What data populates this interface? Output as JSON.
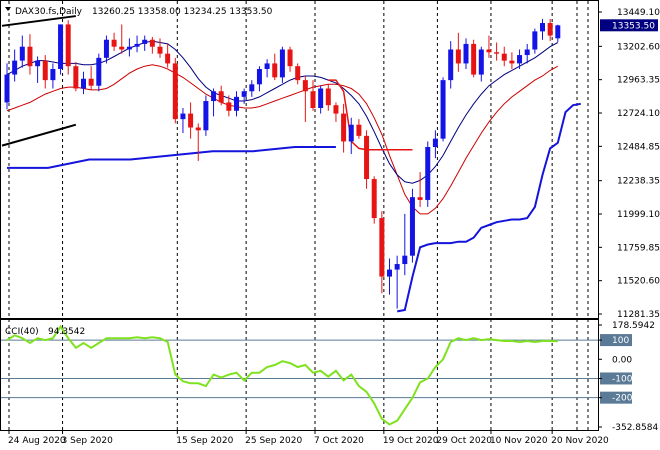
{
  "header": {
    "symbol_text": "DAX30.fs,Daily",
    "ohlc_text": "13260.25 13358.00 13234.25 13353.50",
    "collapse_icon": "triangle-down-icon"
  },
  "price_axis_ticks": [
    "13449.10",
    "13202.60",
    "12963.35",
    "12724.10",
    "12484.85",
    "12238.35",
    "11999.10",
    "11759.85",
    "11520.60",
    "11281.35"
  ],
  "price_tag": "13353.50",
  "cci_header": {
    "name_text": "CCI(40)",
    "value_text": "94.3542"
  },
  "cci_axis_ticks": [
    "178.5942",
    "100",
    "0.00",
    "-100",
    "-200",
    "-352.8584"
  ],
  "date_labels": [
    "24 Aug 2020",
    "3 Sep 2020",
    "15 Sep 2020",
    "25 Sep 2020",
    "7 Oct 2020",
    "19 Oct 2020",
    "29 Oct 2020",
    "10 Nov 2020",
    "20 Nov 2020"
  ],
  "colors": {
    "bull": "#1414e6",
    "bear": "#e61414",
    "ma_fast": "#000080",
    "ma_slow": "#cc0000",
    "support": "#1414dc",
    "cci_line": "#7fe21f",
    "cci_levels": "#5a7a96",
    "tag_bg": "#000080"
  },
  "chart_data": [
    {
      "type": "candlestick",
      "title": "DAX30.fs,Daily",
      "ylim": [
        11281.35,
        13449.1
      ],
      "last_price": 13353.5,
      "candles": [
        {
          "o": 12800,
          "h": 13080,
          "l": 12750,
          "c": 13000
        },
        {
          "o": 13000,
          "h": 13180,
          "l": 12950,
          "c": 13100
        },
        {
          "o": 13100,
          "h": 13280,
          "l": 13050,
          "c": 13200
        },
        {
          "o": 13200,
          "h": 13290,
          "l": 13000,
          "c": 13060
        },
        {
          "o": 13060,
          "h": 13130,
          "l": 12940,
          "c": 13100
        },
        {
          "o": 13100,
          "h": 13140,
          "l": 12900,
          "c": 12960
        },
        {
          "o": 12960,
          "h": 13080,
          "l": 12900,
          "c": 13040
        },
        {
          "o": 13040,
          "h": 13360,
          "l": 13000,
          "c": 13360
        },
        {
          "o": 13360,
          "h": 13390,
          "l": 13000,
          "c": 13060
        },
        {
          "o": 13060,
          "h": 13090,
          "l": 12880,
          "c": 12900
        },
        {
          "o": 12900,
          "h": 13020,
          "l": 12860,
          "c": 12970
        },
        {
          "o": 12970,
          "h": 13060,
          "l": 12890,
          "c": 12920
        },
        {
          "o": 12920,
          "h": 13150,
          "l": 12880,
          "c": 13120
        },
        {
          "o": 13120,
          "h": 13280,
          "l": 13080,
          "c": 13250
        },
        {
          "o": 13250,
          "h": 13300,
          "l": 13170,
          "c": 13200
        },
        {
          "o": 13200,
          "h": 13360,
          "l": 13150,
          "c": 13180
        },
        {
          "o": 13180,
          "h": 13260,
          "l": 13130,
          "c": 13200
        },
        {
          "o": 13200,
          "h": 13280,
          "l": 13160,
          "c": 13220
        },
        {
          "o": 13220,
          "h": 13280,
          "l": 13170,
          "c": 13250
        },
        {
          "o": 13250,
          "h": 13270,
          "l": 13150,
          "c": 13200
        },
        {
          "o": 13200,
          "h": 13260,
          "l": 13120,
          "c": 13150
        },
        {
          "o": 13150,
          "h": 13220,
          "l": 13050,
          "c": 13080
        },
        {
          "o": 13080,
          "h": 13120,
          "l": 12650,
          "c": 12680
        },
        {
          "o": 12680,
          "h": 12760,
          "l": 12580,
          "c": 12720
        },
        {
          "o": 12720,
          "h": 12800,
          "l": 12540,
          "c": 12620
        },
        {
          "o": 12620,
          "h": 12650,
          "l": 12380,
          "c": 12600
        },
        {
          "o": 12600,
          "h": 12850,
          "l": 12560,
          "c": 12810
        },
        {
          "o": 12810,
          "h": 12900,
          "l": 12700,
          "c": 12880
        },
        {
          "o": 12880,
          "h": 12920,
          "l": 12780,
          "c": 12800
        },
        {
          "o": 12800,
          "h": 12850,
          "l": 12700,
          "c": 12740
        },
        {
          "o": 12740,
          "h": 12880,
          "l": 12700,
          "c": 12840
        },
        {
          "o": 12840,
          "h": 12900,
          "l": 12790,
          "c": 12880
        },
        {
          "o": 12880,
          "h": 12960,
          "l": 12840,
          "c": 12930
        },
        {
          "o": 12930,
          "h": 13060,
          "l": 12880,
          "c": 13040
        },
        {
          "o": 13040,
          "h": 13110,
          "l": 12980,
          "c": 13080
        },
        {
          "o": 13080,
          "h": 13150,
          "l": 12960,
          "c": 12980
        },
        {
          "o": 12980,
          "h": 13200,
          "l": 12940,
          "c": 13180
        },
        {
          "o": 13180,
          "h": 13200,
          "l": 13020,
          "c": 13060
        },
        {
          "o": 13060,
          "h": 13080,
          "l": 12930,
          "c": 12960
        },
        {
          "o": 12960,
          "h": 12990,
          "l": 12660,
          "c": 12880
        },
        {
          "o": 12880,
          "h": 12960,
          "l": 12740,
          "c": 12760
        },
        {
          "o": 12760,
          "h": 12920,
          "l": 12720,
          "c": 12900
        },
        {
          "o": 12900,
          "h": 12930,
          "l": 12740,
          "c": 12780
        },
        {
          "o": 12780,
          "h": 12800,
          "l": 12660,
          "c": 12720
        },
        {
          "o": 12720,
          "h": 12790,
          "l": 12440,
          "c": 12520
        },
        {
          "o": 12520,
          "h": 12690,
          "l": 12430,
          "c": 12640
        },
        {
          "o": 12640,
          "h": 12680,
          "l": 12540,
          "c": 12560
        },
        {
          "o": 12560,
          "h": 12600,
          "l": 12180,
          "c": 12250
        },
        {
          "o": 12250,
          "h": 12270,
          "l": 11930,
          "c": 11970
        },
        {
          "o": 11970,
          "h": 12020,
          "l": 11430,
          "c": 11550
        },
        {
          "o": 11550,
          "h": 11680,
          "l": 11420,
          "c": 11600
        },
        {
          "o": 11600,
          "h": 11700,
          "l": 11320,
          "c": 11640
        },
        {
          "o": 11640,
          "h": 12000,
          "l": 11560,
          "c": 11700
        },
        {
          "o": 11700,
          "h": 12180,
          "l": 11650,
          "c": 12120
        },
        {
          "o": 12120,
          "h": 12300,
          "l": 12050,
          "c": 12100
        },
        {
          "o": 12100,
          "h": 12520,
          "l": 12050,
          "c": 12480
        },
        {
          "o": 12480,
          "h": 12600,
          "l": 12400,
          "c": 12540
        },
        {
          "o": 12540,
          "h": 12980,
          "l": 12520,
          "c": 12960
        },
        {
          "o": 12960,
          "h": 13240,
          "l": 12900,
          "c": 13180
        },
        {
          "o": 13180,
          "h": 13300,
          "l": 13020,
          "c": 13080
        },
        {
          "o": 13080,
          "h": 13260,
          "l": 13040,
          "c": 13220
        },
        {
          "o": 13220,
          "h": 13250,
          "l": 12980,
          "c": 13000
        },
        {
          "o": 13000,
          "h": 13200,
          "l": 12950,
          "c": 13180
        },
        {
          "o": 13180,
          "h": 13280,
          "l": 13120,
          "c": 13160
        },
        {
          "o": 13160,
          "h": 13230,
          "l": 13100,
          "c": 13150
        },
        {
          "o": 13150,
          "h": 13200,
          "l": 13060,
          "c": 13100
        },
        {
          "o": 13100,
          "h": 13160,
          "l": 13040,
          "c": 13080
        },
        {
          "o": 13080,
          "h": 13180,
          "l": 13040,
          "c": 13140
        },
        {
          "o": 13140,
          "h": 13220,
          "l": 13080,
          "c": 13180
        },
        {
          "o": 13180,
          "h": 13330,
          "l": 13150,
          "c": 13310
        },
        {
          "o": 13310,
          "h": 13400,
          "l": 13250,
          "c": 13370
        },
        {
          "o": 13370,
          "h": 13400,
          "l": 13240,
          "c": 13280
        },
        {
          "o": 13260.25,
          "h": 13358,
          "l": 13234.25,
          "c": 13353.5
        }
      ],
      "ma_fast": [
        13000,
        13030,
        13060,
        13080,
        13100,
        13100,
        13090,
        13080,
        13080,
        13080,
        13070,
        13070,
        13080,
        13100,
        13130,
        13160,
        13190,
        13210,
        13230,
        13240,
        13230,
        13220,
        13180,
        13120,
        13050,
        12970,
        12910,
        12870,
        12850,
        12830,
        12810,
        12810,
        12820,
        12840,
        12870,
        12900,
        12930,
        12960,
        12980,
        12990,
        12990,
        12980,
        12960,
        12940,
        12900,
        12850,
        12790,
        12700,
        12590,
        12470,
        12360,
        12280,
        12230,
        12220,
        12240,
        12280,
        12340,
        12420,
        12520,
        12620,
        12710,
        12790,
        12860,
        12920,
        12960,
        13000,
        13030,
        13060,
        13090,
        13120,
        13160,
        13200,
        13230
      ],
      "ma_slow": [
        12740,
        12760,
        12780,
        12800,
        12830,
        12860,
        12880,
        12900,
        12910,
        12910,
        12900,
        12890,
        12890,
        12900,
        12930,
        12970,
        13010,
        13040,
        13060,
        13070,
        13060,
        13040,
        13010,
        12980,
        12940,
        12900,
        12860,
        12830,
        12800,
        12780,
        12770,
        12760,
        12760,
        12770,
        12790,
        12810,
        12830,
        12850,
        12870,
        12890,
        12910,
        12920,
        12930,
        12930,
        12920,
        12900,
        12860,
        12790,
        12690,
        12570,
        12420,
        12280,
        12140,
        12050,
        12000,
        12000,
        12040,
        12110,
        12200,
        12300,
        12400,
        12490,
        12580,
        12660,
        12730,
        12790,
        12840,
        12880,
        12920,
        12960,
        12990,
        13030,
        13060
      ],
      "stop_segment": {
        "start_index": 42,
        "values": [
          12960,
          12960,
          12880,
          12520,
          12470,
          12460,
          12460,
          12460,
          12460,
          12460,
          12460,
          12460
        ]
      },
      "support_line": {
        "start_index": 0,
        "end_index": 43,
        "values": [
          12330,
          12330,
          12390,
          12390,
          12420,
          12450,
          12450,
          12480,
          12480
        ]
      },
      "support_line_2": {
        "start_index": 51,
        "values": [
          11300,
          11310,
          11550,
          11760,
          11780,
          11790,
          11790,
          11790,
          11800,
          11800,
          11830,
          11900,
          11920,
          11940,
          11950,
          11960,
          11960,
          11970,
          12050,
          12280,
          12470,
          12510,
          12730,
          12780,
          12790
        ]
      },
      "trend_lines": [
        {
          "from_index": 0,
          "to_index": 9,
          "from_value": 13350,
          "to_value": 13420
        },
        {
          "from_index": 0,
          "to_index": 9,
          "from_value": 12490,
          "to_value": 12640
        }
      ]
    },
    {
      "type": "line",
      "title": "CCI(40) 94.3542",
      "ylim": [
        -352.8584,
        178.5942
      ],
      "levels": [
        100,
        -100,
        -200
      ],
      "series": [
        {
          "name": "CCI(40)",
          "values": [
            100,
            125,
            110,
            85,
            110,
            100,
            110,
            170,
            110,
            60,
            85,
            60,
            85,
            110,
            110,
            110,
            110,
            115,
            110,
            115,
            110,
            90,
            -80,
            -115,
            -125,
            -125,
            -140,
            -80,
            -95,
            -80,
            -70,
            -110,
            -70,
            -70,
            -40,
            -30,
            -10,
            -20,
            -40,
            -30,
            -70,
            -60,
            -90,
            -60,
            -110,
            -80,
            -140,
            -170,
            -230,
            -310,
            -340,
            -320,
            -260,
            -200,
            -120,
            -100,
            -40,
            0,
            90,
            110,
            100,
            110,
            100,
            105,
            100,
            95,
            95,
            90,
            95,
            90,
            95,
            95,
            94.3542
          ]
        }
      ]
    }
  ]
}
